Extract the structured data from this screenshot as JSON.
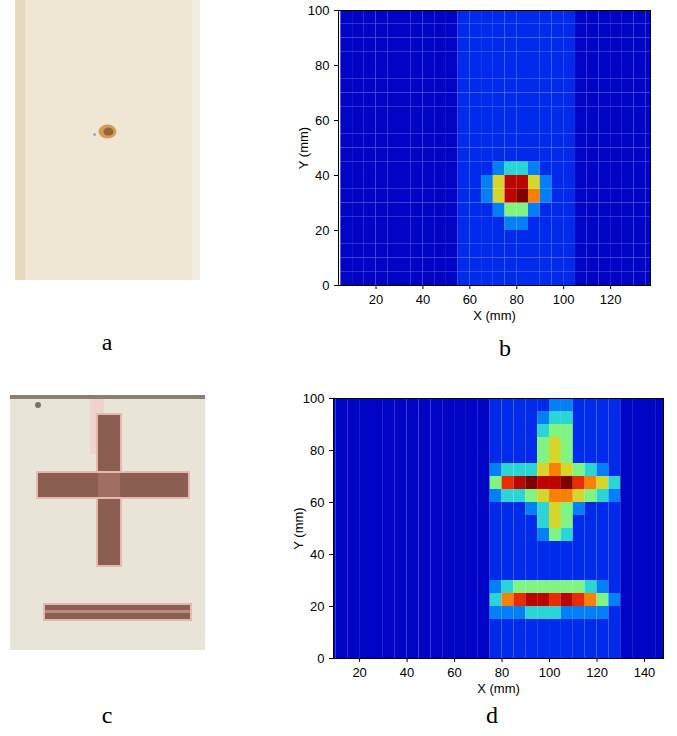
{
  "chart_data": [
    {
      "type": "photo",
      "panel": "a"
    },
    {
      "type": "heatmap",
      "panel": "b",
      "xlabel": "X (mm)",
      "ylabel": "Y (mm)",
      "color": "jet",
      "xlim": [
        4,
        137
      ],
      "ylim": [
        0,
        100
      ],
      "xticks": [
        20,
        40,
        60,
        80,
        100,
        120
      ],
      "yticks": [
        0,
        20,
        40,
        60,
        80,
        100
      ],
      "zlim": [
        0,
        10
      ],
      "x": [
        7.5,
        12.5,
        17.5,
        22.5,
        27.5,
        32.5,
        37.5,
        42.5,
        47.5,
        52.5,
        57.5,
        62.5,
        67.5,
        72.5,
        77.5,
        82.5,
        87.5,
        92.5,
        97.5,
        102.5,
        107.5,
        112.5,
        117.5,
        122.5,
        127.5,
        132.5,
        137.5
      ],
      "y": [
        2.5,
        7.5,
        12.5,
        17.5,
        22.5,
        27.5,
        32.5,
        37.5,
        42.5,
        47.5,
        52.5,
        57.5,
        62.5,
        67.5,
        72.5,
        77.5,
        82.5,
        87.5,
        92.5,
        97.5
      ],
      "cells": [
        [
          1,
          1,
          1,
          1,
          1,
          1,
          1,
          1,
          1,
          1,
          2,
          2,
          2,
          2,
          2,
          2,
          2,
          2,
          2,
          2,
          1,
          1,
          1,
          1,
          1,
          1,
          1
        ],
        [
          1,
          1,
          1,
          1,
          1,
          1,
          1,
          1,
          1,
          1,
          2,
          2,
          2,
          2,
          2,
          2,
          2,
          2,
          2,
          2,
          1,
          1,
          1,
          1,
          1,
          1,
          1
        ],
        [
          1,
          1,
          1,
          1,
          1,
          1,
          1,
          1,
          1,
          1,
          2,
          2,
          2,
          2,
          2,
          2,
          2,
          2,
          2,
          2,
          1,
          1,
          1,
          1,
          1,
          1,
          1
        ],
        [
          1,
          1,
          1,
          1,
          1,
          1,
          1,
          1,
          1,
          1,
          2,
          2,
          2,
          2,
          2,
          2,
          2,
          2,
          2,
          2,
          1,
          1,
          1,
          1,
          1,
          1,
          1
        ],
        [
          1,
          1,
          1,
          1,
          1,
          1,
          1,
          1,
          1,
          1,
          2,
          2,
          2,
          2,
          3,
          3,
          2,
          2,
          2,
          2,
          1,
          1,
          1,
          1,
          1,
          1,
          1
        ],
        [
          1,
          1,
          1,
          1,
          1,
          1,
          1,
          1,
          1,
          1,
          2,
          2,
          2,
          3,
          5,
          5,
          3,
          2,
          2,
          2,
          1,
          1,
          1,
          1,
          1,
          1,
          1
        ],
        [
          1,
          1,
          1,
          1,
          1,
          1,
          1,
          1,
          1,
          1,
          2,
          2,
          3,
          6,
          9,
          10,
          7,
          3,
          2,
          2,
          1,
          1,
          1,
          1,
          1,
          1,
          1
        ],
        [
          1,
          1,
          1,
          1,
          1,
          1,
          1,
          1,
          1,
          1,
          2,
          2,
          3,
          6,
          9,
          9,
          6,
          3,
          2,
          2,
          1,
          1,
          1,
          1,
          1,
          1,
          1
        ],
        [
          1,
          1,
          1,
          1,
          1,
          1,
          1,
          1,
          1,
          1,
          2,
          2,
          2,
          3,
          4,
          4,
          3,
          2,
          2,
          2,
          1,
          1,
          1,
          1,
          1,
          1,
          1
        ],
        [
          1,
          1,
          1,
          1,
          1,
          1,
          1,
          1,
          1,
          1,
          2,
          2,
          2,
          2,
          2,
          2,
          2,
          2,
          2,
          2,
          1,
          1,
          1,
          1,
          1,
          1,
          1
        ],
        [
          1,
          1,
          1,
          1,
          1,
          1,
          1,
          1,
          1,
          1,
          2,
          2,
          2,
          2,
          2,
          2,
          2,
          2,
          2,
          2,
          1,
          1,
          1,
          1,
          1,
          1,
          1
        ],
        [
          1,
          1,
          1,
          1,
          1,
          1,
          1,
          1,
          1,
          1,
          2,
          2,
          2,
          2,
          2,
          2,
          2,
          2,
          2,
          2,
          1,
          1,
          1,
          1,
          1,
          1,
          1
        ],
        [
          1,
          1,
          1,
          1,
          1,
          1,
          1,
          1,
          1,
          1,
          2,
          2,
          2,
          2,
          2,
          2,
          2,
          2,
          2,
          2,
          1,
          1,
          1,
          1,
          1,
          1,
          1
        ],
        [
          1,
          1,
          1,
          1,
          1,
          1,
          1,
          1,
          1,
          1,
          2,
          2,
          2,
          2,
          2,
          2,
          2,
          2,
          2,
          2,
          1,
          1,
          1,
          1,
          1,
          1,
          1
        ],
        [
          1,
          1,
          1,
          1,
          1,
          1,
          1,
          1,
          1,
          1,
          2,
          2,
          2,
          2,
          2,
          2,
          2,
          2,
          2,
          2,
          1,
          1,
          1,
          1,
          1,
          1,
          1
        ],
        [
          1,
          1,
          1,
          1,
          1,
          1,
          1,
          1,
          1,
          1,
          2,
          2,
          2,
          2,
          2,
          2,
          2,
          2,
          2,
          2,
          1,
          1,
          1,
          1,
          1,
          1,
          1
        ],
        [
          1,
          1,
          1,
          1,
          1,
          1,
          1,
          1,
          1,
          1,
          2,
          2,
          2,
          2,
          2,
          2,
          2,
          2,
          2,
          2,
          1,
          1,
          1,
          1,
          1,
          1,
          1
        ],
        [
          1,
          1,
          1,
          1,
          1,
          1,
          1,
          1,
          1,
          1,
          2,
          2,
          2,
          2,
          2,
          2,
          2,
          2,
          2,
          2,
          1,
          1,
          1,
          1,
          1,
          1,
          1
        ],
        [
          1,
          1,
          1,
          1,
          1,
          1,
          1,
          1,
          1,
          1,
          2,
          2,
          2,
          2,
          2,
          2,
          2,
          2,
          2,
          2,
          1,
          1,
          1,
          1,
          1,
          1,
          1
        ],
        [
          1,
          1,
          1,
          1,
          1,
          1,
          1,
          1,
          1,
          1,
          2,
          2,
          2,
          2,
          2,
          2,
          2,
          2,
          2,
          2,
          1,
          1,
          1,
          1,
          1,
          1,
          1
        ]
      ]
    },
    {
      "type": "photo",
      "panel": "c"
    },
    {
      "type": "heatmap",
      "panel": "d",
      "xlabel": "X (mm)",
      "ylabel": "Y (mm)",
      "color": "jet",
      "xlim": [
        9,
        148
      ],
      "ylim": [
        0,
        100
      ],
      "xticks": [
        20,
        40,
        60,
        80,
        100,
        120,
        140
      ],
      "yticks": [
        0,
        20,
        40,
        60,
        80,
        100
      ],
      "zlim": [
        0,
        10
      ],
      "x": [
        7.5,
        12.5,
        17.5,
        22.5,
        27.5,
        32.5,
        37.5,
        42.5,
        47.5,
        52.5,
        57.5,
        62.5,
        67.5,
        72.5,
        77.5,
        82.5,
        87.5,
        92.5,
        97.5,
        102.5,
        107.5,
        112.5,
        117.5,
        122.5,
        127.5,
        132.5,
        137.5,
        142.5,
        147.5
      ],
      "y": [
        2.5,
        7.5,
        12.5,
        17.5,
        22.5,
        27.5,
        32.5,
        37.5,
        42.5,
        47.5,
        52.5,
        57.5,
        62.5,
        67.5,
        72.5,
        77.5,
        82.5,
        87.5,
        92.5,
        97.5
      ],
      "cells": [
        [
          1,
          1,
          1,
          1,
          1,
          1,
          1,
          1,
          1,
          1,
          1,
          1,
          1,
          1,
          2,
          2,
          2,
          2,
          2,
          2,
          2,
          2,
          2,
          2,
          2,
          1,
          1,
          1,
          1
        ],
        [
          1,
          1,
          1,
          1,
          1,
          1,
          1,
          1,
          1,
          1,
          1,
          1,
          1,
          1,
          2,
          2,
          2,
          2,
          2,
          2,
          2,
          2,
          2,
          2,
          2,
          1,
          1,
          1,
          1
        ],
        [
          1,
          1,
          1,
          1,
          1,
          1,
          1,
          1,
          1,
          1,
          1,
          1,
          1,
          1,
          2,
          2,
          2,
          2,
          2,
          2,
          2,
          2,
          2,
          2,
          2,
          1,
          1,
          1,
          1
        ],
        [
          1,
          1,
          1,
          1,
          1,
          1,
          1,
          1,
          1,
          1,
          1,
          1,
          1,
          1,
          3,
          3,
          3,
          4,
          4,
          4,
          3,
          3,
          3,
          3,
          2,
          1,
          1,
          1,
          1
        ],
        [
          1,
          1,
          1,
          1,
          1,
          1,
          1,
          1,
          1,
          1,
          1,
          1,
          1,
          1,
          4,
          7,
          8,
          9,
          9,
          8,
          9,
          8,
          7,
          5,
          3,
          1,
          1,
          1,
          1
        ],
        [
          1,
          1,
          1,
          1,
          1,
          1,
          1,
          1,
          1,
          1,
          1,
          1,
          1,
          1,
          3,
          4,
          5,
          5,
          5,
          5,
          5,
          5,
          4,
          3,
          2,
          1,
          1,
          1,
          1
        ],
        [
          1,
          1,
          1,
          1,
          1,
          1,
          1,
          1,
          1,
          1,
          1,
          1,
          1,
          1,
          2,
          2,
          2,
          2,
          2,
          2,
          2,
          2,
          2,
          2,
          2,
          1,
          1,
          1,
          1
        ],
        [
          1,
          1,
          1,
          1,
          1,
          1,
          1,
          1,
          1,
          1,
          1,
          1,
          1,
          1,
          2,
          2,
          2,
          2,
          2,
          2,
          2,
          2,
          2,
          2,
          2,
          1,
          1,
          1,
          1
        ],
        [
          1,
          1,
          1,
          1,
          1,
          1,
          1,
          1,
          1,
          1,
          1,
          1,
          1,
          1,
          2,
          2,
          2,
          2,
          2,
          2,
          2,
          2,
          2,
          2,
          2,
          1,
          1,
          1,
          1
        ],
        [
          1,
          1,
          1,
          1,
          1,
          1,
          1,
          1,
          1,
          1,
          1,
          1,
          1,
          1,
          2,
          2,
          2,
          2,
          3,
          5,
          4,
          2,
          2,
          2,
          2,
          1,
          1,
          1,
          1
        ],
        [
          1,
          1,
          1,
          1,
          1,
          1,
          1,
          1,
          1,
          1,
          1,
          1,
          1,
          1,
          2,
          2,
          2,
          2,
          4,
          6,
          5,
          2,
          2,
          2,
          2,
          1,
          1,
          1,
          1
        ],
        [
          1,
          1,
          1,
          1,
          1,
          1,
          1,
          1,
          1,
          1,
          1,
          1,
          1,
          1,
          2,
          2,
          2,
          3,
          4,
          6,
          5,
          3,
          2,
          2,
          2,
          1,
          1,
          1,
          1
        ],
        [
          1,
          1,
          1,
          1,
          1,
          1,
          1,
          1,
          1,
          1,
          1,
          1,
          1,
          1,
          3,
          4,
          4,
          5,
          6,
          7,
          7,
          6,
          5,
          4,
          3,
          1,
          1,
          1,
          1
        ],
        [
          1,
          1,
          1,
          1,
          1,
          1,
          1,
          1,
          1,
          1,
          1,
          1,
          1,
          1,
          5,
          8,
          9,
          10,
          9,
          9,
          10,
          8,
          7,
          6,
          4,
          1,
          1,
          1,
          1
        ],
        [
          1,
          1,
          1,
          1,
          1,
          1,
          1,
          1,
          1,
          1,
          1,
          1,
          1,
          1,
          3,
          4,
          4,
          4,
          6,
          7,
          6,
          5,
          4,
          3,
          2,
          1,
          1,
          1,
          1
        ],
        [
          1,
          1,
          1,
          1,
          1,
          1,
          1,
          1,
          1,
          1,
          1,
          1,
          1,
          1,
          2,
          2,
          2,
          2,
          5,
          6,
          5,
          2,
          2,
          2,
          2,
          1,
          1,
          1,
          1
        ],
        [
          1,
          1,
          1,
          1,
          1,
          1,
          1,
          1,
          1,
          1,
          1,
          1,
          1,
          1,
          2,
          2,
          2,
          2,
          5,
          6,
          5,
          2,
          2,
          2,
          2,
          1,
          1,
          1,
          1
        ],
        [
          1,
          1,
          1,
          1,
          1,
          1,
          1,
          1,
          1,
          1,
          1,
          1,
          1,
          1,
          2,
          2,
          2,
          2,
          4,
          5,
          5,
          2,
          2,
          2,
          2,
          1,
          1,
          1,
          1
        ],
        [
          1,
          1,
          1,
          1,
          1,
          1,
          1,
          1,
          1,
          1,
          1,
          1,
          1,
          1,
          2,
          2,
          2,
          2,
          3,
          4,
          4,
          2,
          2,
          2,
          2,
          1,
          1,
          1,
          1
        ],
        [
          1,
          1,
          1,
          1,
          1,
          1,
          1,
          1,
          1,
          1,
          1,
          1,
          1,
          1,
          2,
          2,
          2,
          2,
          2,
          3,
          3,
          2,
          2,
          2,
          2,
          1,
          1,
          1,
          1
        ]
      ]
    }
  ]
}
